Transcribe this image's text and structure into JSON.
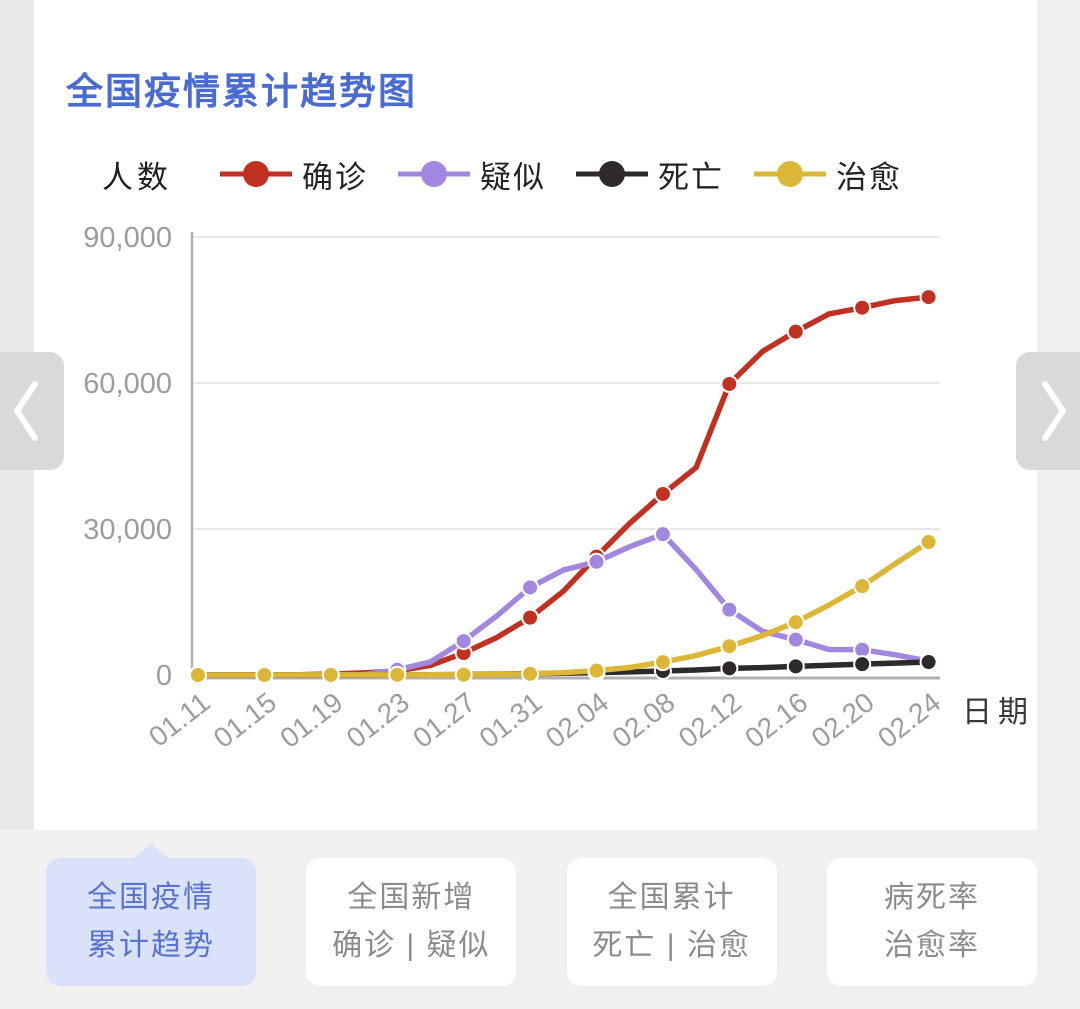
{
  "header": {
    "title": "全国疫情累计趋势图",
    "title_color": "#4a6bd2"
  },
  "chart_data": {
    "type": "line",
    "title": "全国疫情累计趋势图",
    "ylabel": "人数",
    "xlabel": "日期",
    "ylim": [
      0,
      90000
    ],
    "yticks": [
      0,
      30000,
      60000,
      90000
    ],
    "ytick_labels": [
      "0",
      "30,000",
      "60,000",
      "90,000"
    ],
    "grid": "horizontal-only",
    "legend_position": "top",
    "marker_every": 2,
    "x": [
      "01.11",
      "01.13",
      "01.15",
      "01.17",
      "01.19",
      "01.21",
      "01.23",
      "01.25",
      "01.27",
      "01.29",
      "01.31",
      "02.02",
      "02.04",
      "02.06",
      "02.08",
      "02.10",
      "02.12",
      "02.14",
      "02.16",
      "02.18",
      "02.20",
      "02.22",
      "02.24"
    ],
    "xtick_labels": [
      "01.11",
      "01.15",
      "01.19",
      "01.23",
      "01.27",
      "01.31",
      "02.04",
      "02.08",
      "02.12",
      "02.16",
      "02.20",
      "02.24"
    ],
    "series": [
      {
        "name": "确诊",
        "color": "#c03122",
        "values": [
          41,
          41,
          41,
          62,
          201,
          440,
          830,
          1975,
          4515,
          7711,
          11791,
          17205,
          24324,
          31161,
          37198,
          42638,
          59804,
          66492,
          70548,
          74185,
          75465,
          76936,
          77658
        ]
      },
      {
        "name": "疑似",
        "color": "#a287e0",
        "values": [
          0,
          0,
          0,
          0,
          54,
          54,
          1072,
          2684,
          6973,
          12167,
          17988,
          21558,
          23260,
          26359,
          28942,
          21675,
          13435,
          8969,
          7264,
          5248,
          5206,
          4148,
          2824
        ]
      },
      {
        "name": "死亡",
        "color": "#2e2a2b",
        "values": [
          1,
          1,
          2,
          2,
          3,
          9,
          25,
          56,
          106,
          170,
          259,
          361,
          490,
          636,
          811,
          1016,
          1367,
          1523,
          1770,
          2004,
          2236,
          2442,
          2663
        ]
      },
      {
        "name": "治愈",
        "color": "#dcb636",
        "values": [
          2,
          6,
          12,
          19,
          25,
          28,
          34,
          49,
          60,
          124,
          243,
          475,
          892,
          1540,
          2649,
          3996,
          5911,
          8096,
          10844,
          14376,
          18264,
          22888,
          27323
        ]
      }
    ]
  },
  "carousel": {
    "left_icon": "chevron-left",
    "right_icon": "chevron-right"
  },
  "tabs": [
    {
      "line1": "全国疫情",
      "line2": "累计趋势",
      "active": true
    },
    {
      "line1": "全国新增",
      "line2": "确诊 | 疑似",
      "active": false
    },
    {
      "line1": "全国累计",
      "line2": "死亡 | 治愈",
      "active": false
    },
    {
      "line1": "病死率",
      "line2": "治愈率",
      "active": false
    }
  ],
  "theme": {
    "page_bg": "#f0f0f0",
    "card_bg": "#ffffff",
    "axis_text_color": "#9c9c9c",
    "axis_line_color": "#b0b0b0",
    "grid_color": "#e7e7e7",
    "label_text_color": "#3a3a3a",
    "arrow_bg": "#d9d9d9",
    "arrow_glyph": "#ffffff",
    "active_tab_bg": "#d9e2f9",
    "active_tab_text": "#5873cb",
    "inactive_tab_text": "#8b8b8b"
  }
}
